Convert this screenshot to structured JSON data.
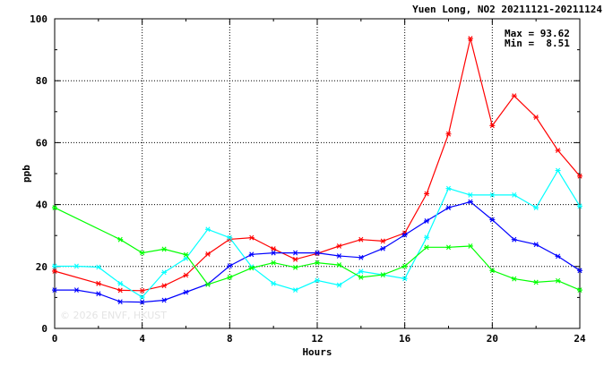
{
  "chart_data": {
    "type": "line",
    "title": "Yuen Long, NO2 20211121-20211124",
    "xlabel": "Hours",
    "ylabel": "ppb",
    "xlim": [
      0,
      24
    ],
    "ylim": [
      0,
      100
    ],
    "x_ticks": [
      0,
      4,
      8,
      12,
      16,
      20,
      24
    ],
    "y_ticks": [
      0,
      20,
      40,
      60,
      80,
      100
    ],
    "grid": true,
    "stats": {
      "max": "Max = 93.62",
      "min": "Min =  8.51"
    },
    "watermark": "© 2026  ENVF, HKUST",
    "series": [
      {
        "color": "#ff0000",
        "marker": "*",
        "x": [
          0,
          2,
          3,
          4,
          5,
          6,
          7,
          8,
          9,
          10,
          11,
          12,
          13,
          14,
          15,
          16,
          17,
          18,
          19,
          20,
          21,
          22,
          23,
          24
        ],
        "y": [
          18.5,
          14.5,
          12.3,
          12.2,
          13.8,
          17.2,
          24,
          28.8,
          29.3,
          25.7,
          22.3,
          24.2,
          26.6,
          28.7,
          28.2,
          30.8,
          43.5,
          62.8,
          93.62,
          65.5,
          75.1,
          68.2,
          57.5,
          49.2
        ]
      },
      {
        "color": "#0000ff",
        "marker": "*",
        "x": [
          0,
          1,
          2,
          3,
          4,
          5,
          6,
          7,
          8,
          9,
          10,
          11,
          12,
          13,
          14,
          15,
          16,
          17,
          18,
          19,
          20,
          21,
          22,
          23,
          24
        ],
        "y": [
          12.4,
          12.4,
          11.2,
          8.6,
          8.51,
          9.1,
          11.7,
          14.3,
          20.2,
          23.9,
          24.4,
          24.4,
          24.4,
          23.4,
          22.9,
          25.8,
          30.2,
          34.7,
          39,
          40.9,
          35.1,
          28.7,
          27.1,
          23.3,
          18.7
        ]
      },
      {
        "color": "#00ffff",
        "marker": "*",
        "x": [
          0,
          1,
          2,
          3,
          4,
          5,
          6,
          7,
          8,
          9,
          10,
          11,
          12,
          13,
          14,
          15,
          16,
          17,
          18,
          19,
          20,
          21,
          22,
          23,
          24
        ],
        "y": [
          20.1,
          20.1,
          19.8,
          14.5,
          10.1,
          18.1,
          22.6,
          32,
          29.3,
          19.9,
          14.5,
          12.4,
          15.5,
          14,
          18.4,
          17.3,
          16.1,
          29.4,
          45.2,
          43.1,
          43.1,
          43.1,
          39,
          51,
          39.5
        ]
      },
      {
        "color": "#00ff00",
        "marker": "*",
        "x": [
          0,
          3,
          4,
          5,
          6,
          7,
          8,
          9,
          10,
          11,
          12,
          13,
          14,
          15,
          16,
          17,
          18,
          19,
          20,
          21,
          22,
          23,
          24
        ],
        "y": [
          39,
          28.7,
          24.4,
          25.6,
          23.8,
          14.2,
          16.5,
          19.5,
          21.2,
          19.7,
          21.2,
          20.5,
          16.5,
          17.3,
          20.1,
          26.2,
          26.2,
          26.6,
          18.7,
          16,
          14.9,
          15.4,
          12.4
        ]
      }
    ]
  }
}
